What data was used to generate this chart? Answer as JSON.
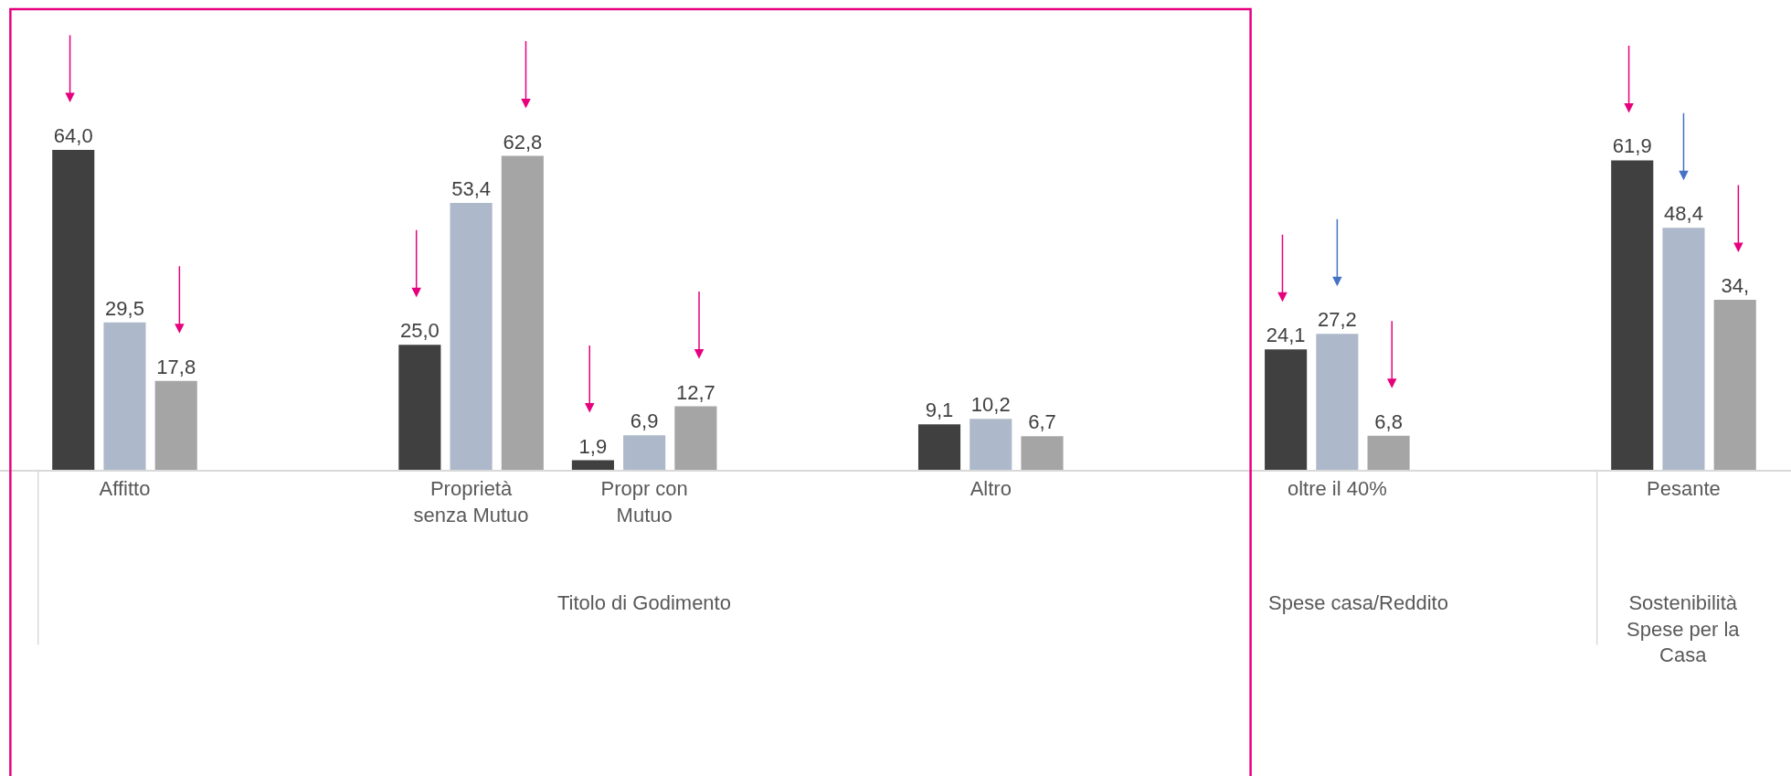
{
  "chart_data": {
    "type": "bar",
    "categories": [
      "Affitto",
      null,
      "Proprietà senza Mutuo",
      "Propr con Mutuo",
      null,
      "Altro",
      null,
      "oltre il 40%",
      null,
      "Pesante"
    ],
    "series": [
      {
        "color": "#404040",
        "values": [
          64.0,
          null,
          25.0,
          1.9,
          null,
          9.1,
          null,
          24.1,
          null,
          61.9
        ],
        "value_labels": [
          "64,0",
          null,
          "25,0",
          "1,9",
          null,
          "9,1",
          null,
          "24,1",
          null,
          "61,9"
        ]
      },
      {
        "color": "#adb9ca",
        "values": [
          29.5,
          null,
          53.4,
          6.9,
          null,
          10.2,
          null,
          27.2,
          null,
          48.4
        ],
        "value_labels": [
          "29,5",
          null,
          "53,4",
          "6,9",
          null,
          "10,2",
          null,
          "27,2",
          null,
          "48,4"
        ]
      },
      {
        "color": "#a5a5a5",
        "values": [
          17.8,
          null,
          62.8,
          12.7,
          null,
          6.7,
          null,
          6.8,
          null,
          34
        ],
        "value_labels": [
          "17,8",
          null,
          "62,8",
          "12,7",
          null,
          "6,7",
          null,
          "6,8",
          null,
          "34,"
        ]
      }
    ],
    "tick_labels": "x",
    "grid": false,
    "legend": false,
    "annotations": [
      "Titolo di Godimento",
      "Spese casa/Reddito",
      "Sostenibilità Spese per la Casa"
    ]
  }
}
